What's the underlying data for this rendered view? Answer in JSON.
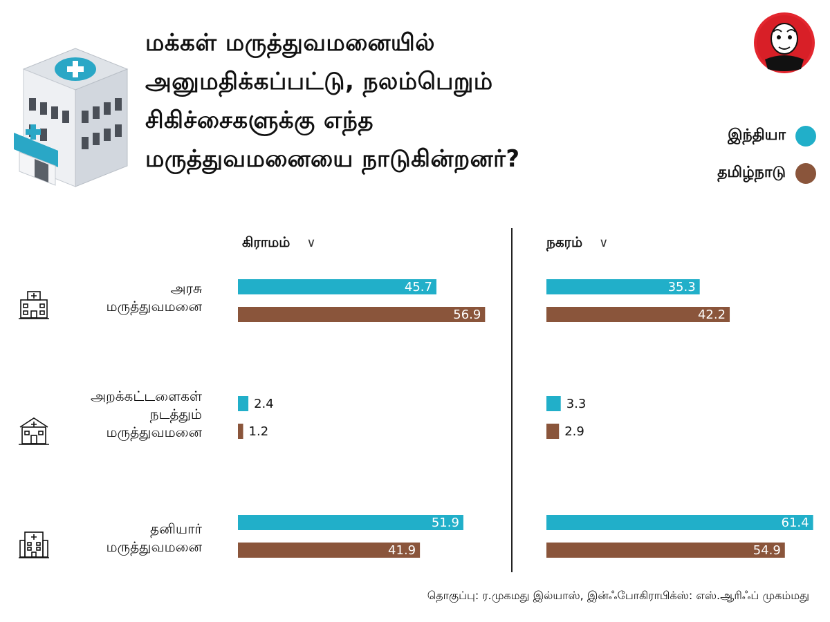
{
  "title_lines": [
    "மக்கள் மருத்துவமனையில்",
    "அனுமதிக்கப்பட்டு, நலம்பெறும்",
    "சிகிச்சைகளுக்கு எந்த",
    "மருத்துவமனையை நாடுகின்றனர்?"
  ],
  "colors": {
    "india": "#21AFC9",
    "tamilnadu": "#8A553B",
    "divider": "#222222"
  },
  "legend": [
    {
      "label": "இந்தியா",
      "color": "#21AFC9"
    },
    {
      "label": "தமிழ்நாடு",
      "color": "#8A553B"
    }
  ],
  "panels": [
    {
      "label": "கிராமம்",
      "caret": "∨"
    },
    {
      "label": "நகரம்",
      "caret": "∨"
    }
  ],
  "categories": [
    {
      "lines": [
        "அரசு",
        "மருத்துவமனை"
      ],
      "icon": "government-hospital-icon"
    },
    {
      "lines": [
        "அறக்கட்டளைகள்",
        "நடத்தும்",
        "மருத்துவமனை"
      ],
      "icon": "trust-hospital-icon"
    },
    {
      "lines": [
        "தனியார்",
        "மருத்துவமனை"
      ],
      "icon": "private-hospital-icon"
    }
  ],
  "chart_data": {
    "type": "bar",
    "orientation": "horizontal",
    "title": "மக்கள் மருத்துவமனையில் அனுமதிக்கப்பட்டு, நலம்பெறும் சிகிச்சைகளுக்கு எந்த மருத்துவமனையை நாடுகின்றனர்?",
    "categories": [
      "அரசு மருத்துவமனை",
      "அறக்கட்டளைகள் நடத்தும் மருத்துவமனை",
      "தனியார் மருத்துவமனை"
    ],
    "panels": [
      {
        "name": "கிராமம்",
        "series": [
          {
            "name": "இந்தியா",
            "values": [
              45.7,
              2.4,
              51.9
            ]
          },
          {
            "name": "தமிழ்நாடு",
            "values": [
              56.9,
              1.2,
              41.9
            ]
          }
        ]
      },
      {
        "name": "நகரம்",
        "series": [
          {
            "name": "இந்தியா",
            "values": [
              35.3,
              3.3,
              61.4
            ]
          },
          {
            "name": "தமிழ்நாடு",
            "values": [
              42.2,
              2.9,
              54.9
            ]
          }
        ]
      }
    ],
    "legend_position": "top-right",
    "grid": false
  },
  "source": "தொகுப்பு: ர.முகமது இல்யாஸ், இன்ஃபோகிராபிக்ஸ்: எஸ்.ஆரிஃப் முகம்மது"
}
